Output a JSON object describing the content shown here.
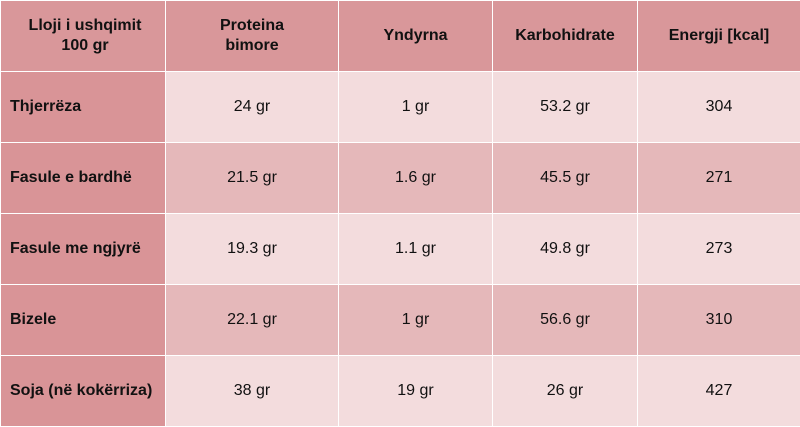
{
  "table": {
    "headers": [
      {
        "line1": "Lloji i ushqimit",
        "line2": "100 gr"
      },
      {
        "line1": "Proteina",
        "line2": "bimore"
      },
      {
        "line1": "Yndyrna",
        "line2": ""
      },
      {
        "line1": "Karbohidrate",
        "line2": ""
      },
      {
        "line1": "Energji [kcal]",
        "line2": ""
      }
    ],
    "rows": [
      {
        "food": "Thjerrëza",
        "protein": "24 gr",
        "fat": "1 gr",
        "carbs": "53.2 gr",
        "energy": "304"
      },
      {
        "food": "Fasule e bardhë",
        "protein": "21.5 gr",
        "fat": "1.6 gr",
        "carbs": "45.5 gr",
        "energy": "271"
      },
      {
        "food": "Fasule me ngjyrë",
        "protein": "19.3 gr",
        "fat": "1.1 gr",
        "carbs": "49.8 gr",
        "energy": "273"
      },
      {
        "food": "Bizele",
        "protein": "22.1 gr",
        "fat": "1 gr",
        "carbs": "56.6 gr",
        "energy": "310"
      },
      {
        "food": "Soja (në kokërriza)",
        "protein": "38 gr",
        "fat": "19 gr",
        "carbs": "26 gr",
        "energy": "427"
      }
    ]
  },
  "colors": {
    "header_bg": "#d9979a",
    "label_bg": "#d99497",
    "row_light": "#f3dcdd",
    "row_dark": "#e5b8ba"
  }
}
